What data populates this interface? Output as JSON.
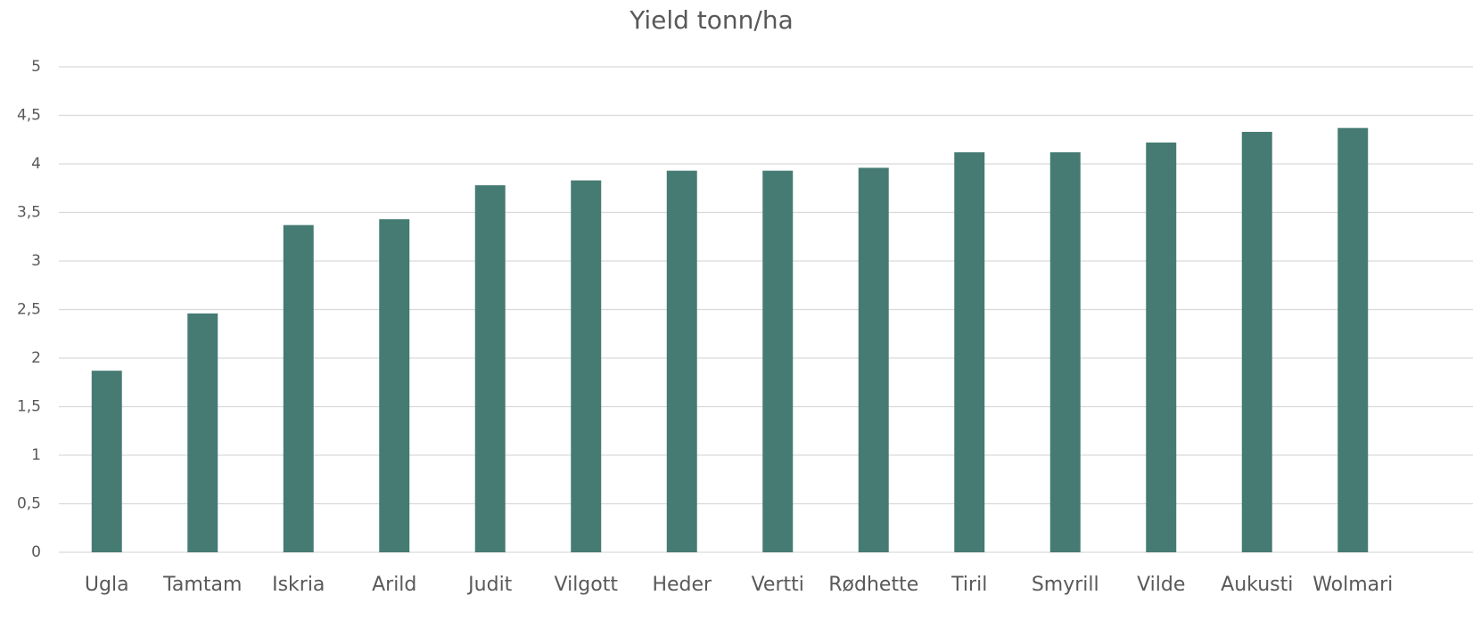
{
  "chart_data": {
    "type": "bar",
    "title": "Yield tonn/ha",
    "categories": [
      "Ugla",
      "Tamtam",
      "Iskria",
      "Arild",
      "Judit",
      "Vilgott",
      "Heder",
      "Vertti",
      "Rødhette",
      "Tiril",
      "Smyrill",
      "Vilde",
      "Aukusti",
      "Wolmari"
    ],
    "values": [
      1.87,
      2.46,
      3.37,
      3.43,
      3.78,
      3.83,
      3.93,
      3.93,
      3.96,
      4.12,
      4.12,
      4.22,
      4.33,
      4.37
    ],
    "color": "#457b73",
    "ylim": [
      0,
      5
    ],
    "yticks": [
      0,
      {
        "value": 0.5,
        "label": "0,5"
      },
      1,
      {
        "value": 1.5,
        "label": "1,5"
      },
      2,
      {
        "value": 2.5,
        "label": "2,5"
      },
      3,
      {
        "value": 3.5,
        "label": "3,5"
      },
      4,
      {
        "value": 4.5,
        "label": "4,5"
      },
      5
    ],
    "grid": true
  }
}
